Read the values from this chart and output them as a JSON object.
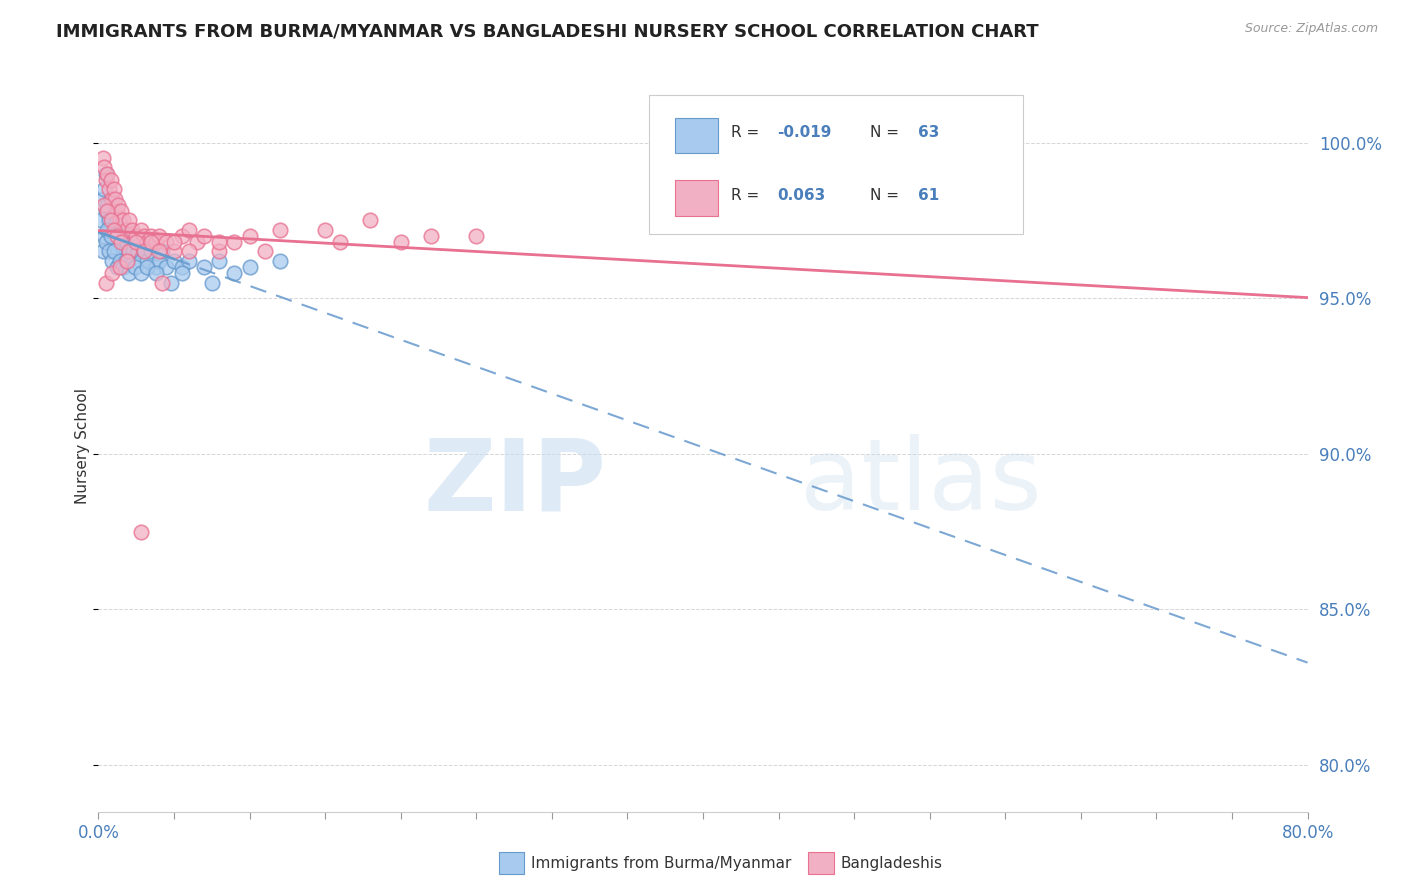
{
  "title": "IMMIGRANTS FROM BURMA/MYANMAR VS BANGLADESHI NURSERY SCHOOL CORRELATION CHART",
  "source": "Source: ZipAtlas.com",
  "ylabel": "Nursery School",
  "yaxis_values": [
    80.0,
    85.0,
    90.0,
    95.0,
    100.0
  ],
  "xlim": [
    0.0,
    80.0
  ],
  "ylim": [
    78.5,
    102.0
  ],
  "color_blue": "#A8CAEE",
  "color_pink": "#F2B0C4",
  "color_blue_line": "#6699CC",
  "color_pink_line": "#E87090",
  "blue_scatter_x": [
    0.2,
    0.3,
    0.4,
    0.5,
    0.5,
    0.6,
    0.7,
    0.8,
    0.8,
    0.9,
    1.0,
    1.0,
    1.1,
    1.2,
    1.3,
    1.4,
    1.5,
    1.6,
    1.7,
    1.8,
    1.9,
    2.0,
    2.1,
    2.2,
    2.3,
    2.5,
    2.6,
    2.8,
    3.0,
    3.2,
    3.5,
    3.8,
    4.0,
    4.2,
    4.5,
    5.0,
    5.5,
    6.0,
    7.0,
    8.0,
    9.0,
    10.0,
    12.0,
    0.3,
    0.4,
    0.5,
    0.6,
    0.7,
    0.8,
    0.9,
    1.0,
    1.2,
    1.4,
    1.6,
    1.8,
    2.0,
    2.4,
    2.8,
    3.2,
    3.8,
    4.8,
    5.5,
    7.5
  ],
  "blue_scatter_y": [
    97.5,
    98.2,
    98.5,
    99.0,
    97.8,
    98.0,
    97.5,
    98.2,
    97.0,
    97.5,
    97.8,
    96.8,
    97.2,
    97.5,
    96.5,
    97.0,
    97.2,
    96.8,
    97.0,
    96.5,
    96.8,
    96.5,
    97.0,
    96.8,
    96.5,
    96.8,
    96.5,
    96.2,
    96.5,
    96.2,
    96.5,
    96.0,
    96.2,
    96.5,
    96.0,
    96.2,
    96.0,
    96.2,
    96.0,
    96.2,
    95.8,
    96.0,
    96.2,
    96.5,
    97.0,
    96.8,
    97.2,
    96.5,
    97.0,
    96.2,
    96.5,
    96.0,
    96.2,
    96.0,
    96.2,
    95.8,
    96.0,
    95.8,
    96.0,
    95.8,
    95.5,
    95.8,
    95.5
  ],
  "pink_scatter_x": [
    0.3,
    0.4,
    0.5,
    0.6,
    0.7,
    0.8,
    0.9,
    1.0,
    1.1,
    1.2,
    1.3,
    1.4,
    1.5,
    1.6,
    1.8,
    2.0,
    2.2,
    2.5,
    2.8,
    3.0,
    3.2,
    3.5,
    3.8,
    4.0,
    4.5,
    5.0,
    5.5,
    6.0,
    6.5,
    7.0,
    8.0,
    9.0,
    10.0,
    12.0,
    15.0,
    18.0,
    20.0,
    25.0,
    0.4,
    0.6,
    0.8,
    1.0,
    1.2,
    1.5,
    2.0,
    2.5,
    3.0,
    3.5,
    4.0,
    5.0,
    6.0,
    8.0,
    11.0,
    16.0,
    22.0,
    0.5,
    0.9,
    1.4,
    1.9,
    2.8,
    4.2
  ],
  "pink_scatter_y": [
    99.5,
    99.2,
    98.8,
    99.0,
    98.5,
    98.8,
    98.2,
    98.5,
    98.2,
    97.8,
    98.0,
    97.5,
    97.8,
    97.5,
    97.2,
    97.5,
    97.2,
    97.0,
    97.2,
    97.0,
    96.8,
    97.0,
    96.8,
    97.0,
    96.8,
    96.5,
    97.0,
    97.2,
    96.8,
    97.0,
    96.5,
    96.8,
    97.0,
    97.2,
    97.2,
    97.5,
    96.8,
    97.0,
    98.0,
    97.8,
    97.5,
    97.2,
    97.0,
    96.8,
    96.5,
    96.8,
    96.5,
    96.8,
    96.5,
    96.8,
    96.5,
    96.8,
    96.5,
    96.8,
    97.0,
    95.5,
    95.8,
    96.0,
    96.2,
    87.5,
    95.5
  ]
}
